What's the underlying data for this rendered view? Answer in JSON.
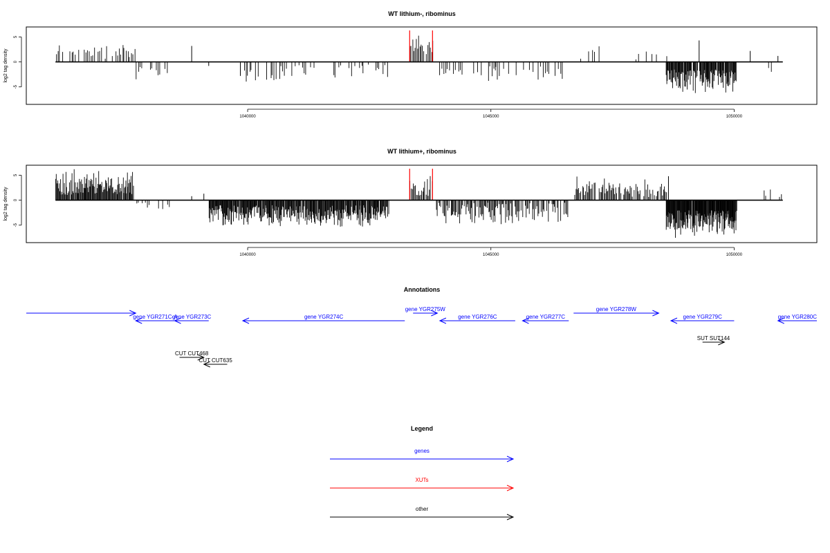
{
  "colors": {
    "genes": "#0000ff",
    "xuts": "#ff0000",
    "other": "#000000",
    "signal": "#000000"
  },
  "x_axis": {
    "ticks": [
      1040000,
      1045000,
      1050000
    ],
    "range": [
      1035450,
      1051700
    ]
  },
  "chart_data": [
    {
      "type": "bar",
      "title": "WT lithium-, ribominus",
      "ylabel": "log2 tag density",
      "yticks": [
        -5,
        0,
        5
      ],
      "ylim": [
        -8.5,
        7
      ],
      "xlim": [
        1035450,
        1051700
      ],
      "xut_marks": [
        1043330,
        1043800
      ],
      "blocks": [
        {
          "start": 1036050,
          "end": 1037700,
          "sign": 1,
          "lo": 0.6,
          "hi": 4.3,
          "step": 36,
          "density": 0.75
        },
        {
          "start": 1037700,
          "end": 1038400,
          "sign": -1,
          "lo": 1.0,
          "hi": 4.3,
          "step": 40,
          "density": 0.6
        },
        {
          "start": 1039850,
          "end": 1042900,
          "sign": -1,
          "lo": 0.5,
          "hi": 4.3,
          "step": 36,
          "density": 0.55
        },
        {
          "start": 1043330,
          "end": 1043800,
          "sign": 1,
          "lo": 0.8,
          "hi": 5.5,
          "step": 26,
          "density": 0.95
        },
        {
          "start": 1043870,
          "end": 1046600,
          "sign": -1,
          "lo": 0.5,
          "hi": 4.2,
          "step": 38,
          "density": 0.5
        },
        {
          "start": 1046700,
          "end": 1048600,
          "sign": 1,
          "lo": 0.5,
          "hi": 3.6,
          "step": 70,
          "density": 0.35
        },
        {
          "start": 1048600,
          "end": 1050050,
          "sign": -1,
          "lo": 1.5,
          "hi": 6.8,
          "step": 12,
          "density": 0.95
        },
        {
          "start": 1050300,
          "end": 1051000,
          "sign": -1,
          "lo": 0.3,
          "hi": 3.0,
          "step": 90,
          "density": 0.3
        }
      ],
      "spikes": [
        [
          1038850,
          3.2
        ],
        [
          1039200,
          -0.8
        ],
        [
          1039850,
          -2.8
        ],
        [
          1045100,
          -1.0
        ],
        [
          1049280,
          4.3
        ],
        [
          1050330,
          2.2
        ],
        [
          1050900,
          1.2
        ]
      ]
    },
    {
      "type": "bar",
      "title": "WT lithium+, ribominus",
      "ylabel": "log2 tag density",
      "yticks": [
        -5,
        0,
        5
      ],
      "ylim": [
        -8.5,
        7
      ],
      "xlim": [
        1035450,
        1051700
      ],
      "xut_marks": [
        1043330,
        1043800
      ],
      "blocks": [
        {
          "start": 1036050,
          "end": 1037650,
          "sign": 1,
          "lo": 1.0,
          "hi": 6.3,
          "step": 14,
          "density": 0.95
        },
        {
          "start": 1037700,
          "end": 1038400,
          "sign": -1,
          "lo": 0.5,
          "hi": 2.5,
          "step": 38,
          "density": 0.55
        },
        {
          "start": 1039200,
          "end": 1042900,
          "sign": -1,
          "lo": 1.0,
          "hi": 5.6,
          "step": 12,
          "density": 0.95
        },
        {
          "start": 1043330,
          "end": 1043800,
          "sign": 1,
          "lo": 0.8,
          "hi": 5.5,
          "step": 22,
          "density": 0.95
        },
        {
          "start": 1043870,
          "end": 1046600,
          "sign": -1,
          "lo": 0.5,
          "hi": 5.3,
          "step": 18,
          "density": 0.8
        },
        {
          "start": 1046700,
          "end": 1048600,
          "sign": 1,
          "lo": 0.5,
          "hi": 5.0,
          "step": 20,
          "density": 0.8
        },
        {
          "start": 1048600,
          "end": 1050050,
          "sign": -1,
          "lo": 2.0,
          "hi": 7.8,
          "step": 9,
          "density": 0.97
        },
        {
          "start": 1050600,
          "end": 1051000,
          "sign": 1,
          "lo": 0.5,
          "hi": 2.5,
          "step": 45,
          "density": 0.5
        }
      ],
      "spikes": [
        [
          1038850,
          0.8
        ],
        [
          1039100,
          1.3
        ],
        [
          1048650,
          4.8
        ]
      ]
    }
  ],
  "annotations": {
    "title": "Annotations",
    "genes": [
      {
        "label": "",
        "start": 1035450,
        "end": 1037700,
        "dir": "right",
        "row": 0
      },
      {
        "label": "gene YGR271C-A",
        "start": 1037700,
        "end": 1038500,
        "dir": "left",
        "row": 1
      },
      {
        "label": "gene YGR273C",
        "start": 1038500,
        "end": 1039200,
        "dir": "left",
        "row": 1
      },
      {
        "label": "gene YGR274C",
        "start": 1039900,
        "end": 1043230,
        "dir": "left",
        "row": 1
      },
      {
        "label": "gene YGR275W",
        "start": 1043400,
        "end": 1043900,
        "dir": "right",
        "row": 0
      },
      {
        "label": "gene YGR276C",
        "start": 1043950,
        "end": 1045500,
        "dir": "left",
        "row": 1
      },
      {
        "label": "gene YGR277C",
        "start": 1045650,
        "end": 1046600,
        "dir": "left",
        "row": 1
      },
      {
        "label": "gene YGR278W",
        "start": 1046700,
        "end": 1048450,
        "dir": "right",
        "row": 0
      },
      {
        "label": "gene YGR279C",
        "start": 1048700,
        "end": 1050000,
        "dir": "left",
        "row": 1
      },
      {
        "label": "gene YGR280C",
        "start": 1050900,
        "end": 1051700,
        "dir": "left",
        "row": 1
      }
    ],
    "other": [
      {
        "label": "CUT CUT468",
        "start": 1038600,
        "end": 1039100,
        "dir": "right",
        "row": 2
      },
      {
        "label": "CUT CUT635",
        "start": 1039100,
        "end": 1039580,
        "dir": "left",
        "row": 3
      },
      {
        "label": "SUT SUT144",
        "start": 1049350,
        "end": 1049800,
        "dir": "right",
        "row": 4
      }
    ]
  },
  "legend": {
    "title": "Legend",
    "items": [
      {
        "label": "genes",
        "color": "#0000ff"
      },
      {
        "label": "XUTs",
        "color": "#ff0000"
      },
      {
        "label": "other",
        "color": "#000000"
      }
    ]
  }
}
